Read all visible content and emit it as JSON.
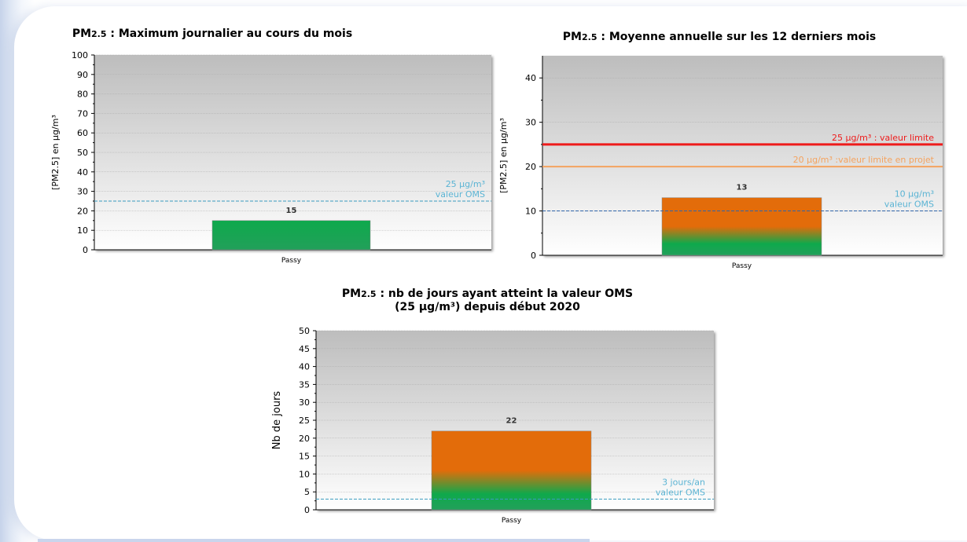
{
  "chart_data": [
    {
      "type": "bar",
      "title_prefix": "PM",
      "title_sub": "2.5",
      "title_rest": " : Maximum journalier au cours du mois",
      "ylabel": "[PM2.5] en µg/m³",
      "categories": [
        "Passy"
      ],
      "values": [
        15
      ],
      "ylim": [
        0,
        100
      ],
      "yticks": [
        0,
        10,
        20,
        30,
        40,
        50,
        60,
        70,
        80,
        90,
        100
      ],
      "bar_colors": [
        "#0ea94c",
        "#0ea94c"
      ],
      "lines": [
        {
          "value": 25,
          "style": "dashed",
          "color": "#3a9cc0",
          "label": [
            "25 µg/m³",
            "valeur OMS"
          ],
          "label_color": "#5bb4d4"
        }
      ]
    },
    {
      "type": "bar",
      "title_prefix": "PM",
      "title_sub": "2.5",
      "title_rest": " : Moyenne annuelle sur les 12 derniers mois",
      "ylabel": "[PM2.5] en µg/m³",
      "categories": [
        "Passy"
      ],
      "values": [
        13
      ],
      "ylim": [
        0,
        45
      ],
      "yticks": [
        0,
        10,
        20,
        30,
        40
      ],
      "bar_colors": [
        "#e36c0a",
        "#0ea94c"
      ],
      "lines": [
        {
          "value": 25,
          "style": "solid",
          "color": "#ee1b1b",
          "label": [
            "25 µg/m³ : valeur limite"
          ],
          "label_color": "#ee1b1b"
        },
        {
          "value": 20,
          "style": "solid",
          "color": "#f4a35f",
          "label": [
            "20 µg/m³ :valeur limite en projet"
          ],
          "label_color": "#f4a35f"
        },
        {
          "value": 10,
          "style": "dashed",
          "color": "#3065a9",
          "label": [
            "10 µg/m³",
            "valeur OMS"
          ],
          "label_color": "#5bb4d4"
        }
      ]
    },
    {
      "type": "bar",
      "title_prefix": "PM",
      "title_sub": "2.5",
      "title_rest": " : nb de jours ayant atteint la valeur OMS",
      "title_line2": "(25 µg/m³) depuis début 2020",
      "ylabel": "Nb de jours",
      "categories": [
        "Passy"
      ],
      "values": [
        22
      ],
      "ylim": [
        0,
        50
      ],
      "yticks": [
        0,
        5,
        10,
        15,
        20,
        25,
        30,
        35,
        40,
        45,
        50
      ],
      "bar_colors": [
        "#e36c0a",
        "#0ea94c"
      ],
      "lines": [
        {
          "value": 3,
          "style": "dashed",
          "color": "#3a9cc0",
          "label": [
            "3 jours/an",
            "valeur OMS"
          ],
          "label_color": "#5bb4d4"
        }
      ]
    }
  ]
}
